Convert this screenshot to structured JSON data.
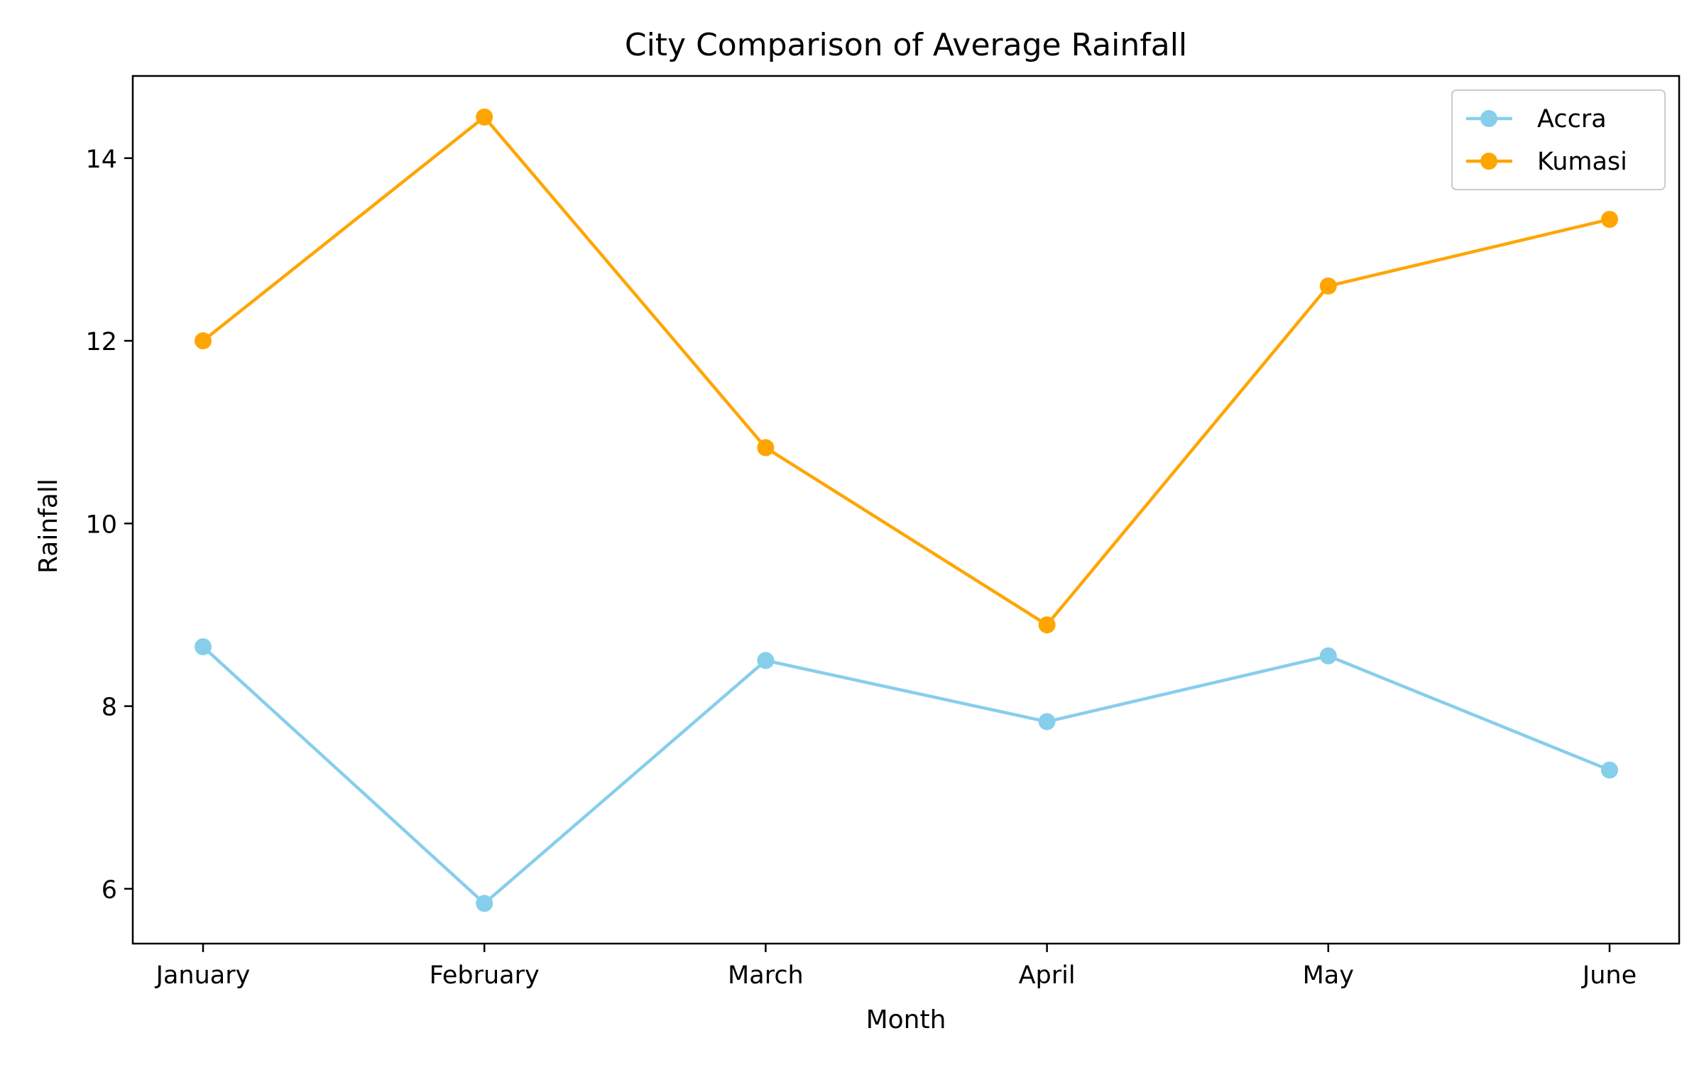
{
  "chart_data": {
    "type": "line",
    "title": "City Comparison of Average Rainfall",
    "xlabel": "Month",
    "ylabel": "Rainfall",
    "categories": [
      "January",
      "February",
      "March",
      "April",
      "May",
      "June"
    ],
    "ylim": [
      5.4,
      14.9
    ],
    "yticks": [
      6,
      8,
      10,
      12,
      14
    ],
    "grid": false,
    "legend_position": "top-right",
    "series": [
      {
        "name": "Accra",
        "color": "#87CEEB",
        "marker": "circle",
        "values": [
          8.65,
          5.84,
          8.5,
          7.83,
          8.55,
          7.3
        ]
      },
      {
        "name": "Kumasi",
        "color": "#FFA500",
        "marker": "circle",
        "values": [
          12.0,
          14.45,
          10.83,
          8.89,
          12.6,
          13.33
        ]
      }
    ]
  }
}
